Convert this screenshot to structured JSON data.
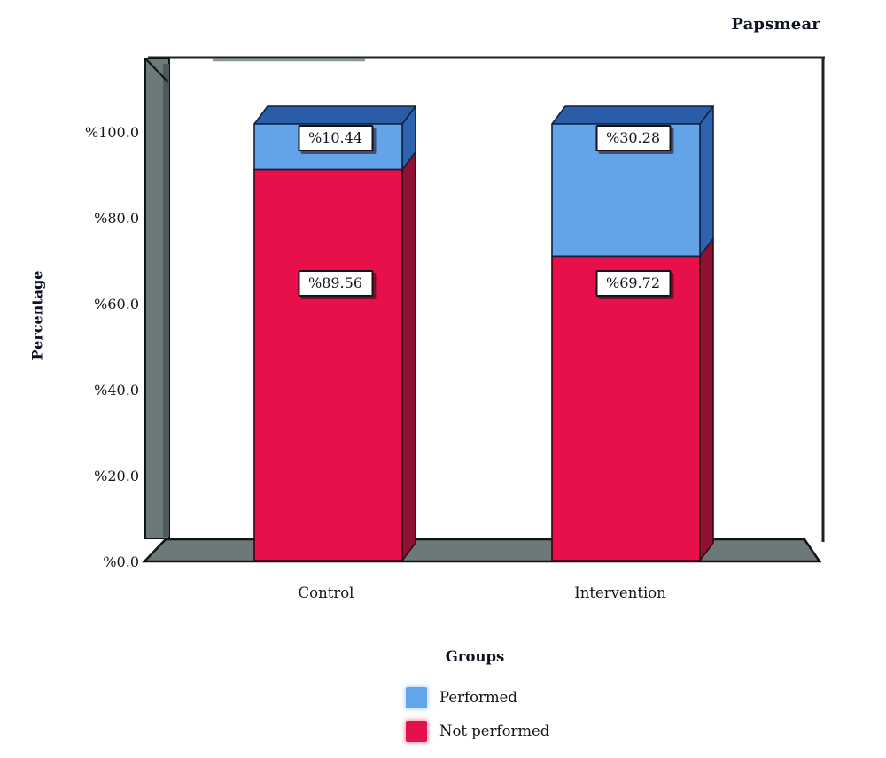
{
  "title": "Papsmear",
  "axes": {
    "y_title": "Percentage",
    "y_ticks": [
      "%100.0",
      "%80.0",
      "%60.0",
      "%40.0",
      "%20.0",
      "%0.0"
    ],
    "x_categories": [
      "Control",
      "Intervention"
    ]
  },
  "legend": {
    "title": "Groups",
    "items": [
      {
        "label": "Performed",
        "color": "#64A4E8"
      },
      {
        "label": "Not performed",
        "color": "#E5114D"
      }
    ]
  },
  "chart_data": {
    "type": "bar",
    "subtype": "stacked-3d",
    "title": "Papsmear",
    "xlabel": "Groups",
    "ylabel": "Percentage",
    "ylim": [
      0,
      100
    ],
    "categories": [
      "Control",
      "Intervention"
    ],
    "series": [
      {
        "name": "Performed",
        "values": [
          10.44,
          30.28
        ],
        "labels": [
          "%10.44",
          "%30.28"
        ],
        "color": "#63A4E9",
        "color_top": "#2A5CA8",
        "color_side": "#2F63AF",
        "edge": "#0F2240"
      },
      {
        "name": "Not performed",
        "values": [
          89.56,
          69.72
        ],
        "labels": [
          "%89.56",
          "%69.72"
        ],
        "color": "#E8104A",
        "color_top": "#8E1134",
        "color_side": "#8E1134",
        "edge": "#33060F"
      }
    ]
  }
}
